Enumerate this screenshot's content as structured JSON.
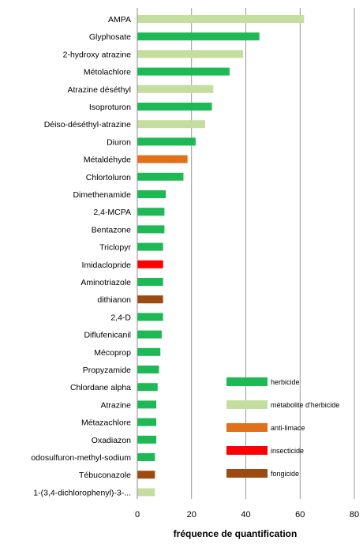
{
  "chart_data": {
    "type": "bar",
    "orientation": "horizontal",
    "title": "",
    "xlabel": "fréquence de quantification",
    "ylabel": "",
    "xlim": [
      0,
      80
    ],
    "xticks": [
      0,
      20,
      40,
      60,
      80
    ],
    "grid": "vertical",
    "legend_position": "right",
    "legend": [
      {
        "key": "herbicide",
        "label": "herbicide",
        "color": "#1db954"
      },
      {
        "key": "metabolite",
        "label": "métabolite d'herbicide",
        "color": "#c4dea0"
      },
      {
        "key": "anti-limace",
        "label": "anti-limace",
        "color": "#e2701b"
      },
      {
        "key": "insecticide",
        "label": "insecticide",
        "color": "#ff0000"
      },
      {
        "key": "fongicide",
        "label": "fongicide",
        "color": "#9c4a12"
      }
    ],
    "categories": [
      "AMPA",
      "Glyphosate",
      "2-hydroxy atrazine",
      "Métolachlore",
      "Atrazine déséthyl",
      "Isoproturon",
      "Déiso-déséthyl-atrazine",
      "Diuron",
      "Métaldéhyde",
      "Chlortoluron",
      "Dimethenamide",
      "2,4-MCPA",
      "Bentazone",
      "Triclopyr",
      "Imidaclopride",
      "Aminotriazole",
      "dithianon",
      "2,4-D",
      "Diflufenicanil",
      "Mécoprop",
      "Propyzamide",
      "Chlordane alpha",
      "Atrazine",
      "Métazachlore",
      "Oxadiazon",
      "odosulfuron-methyl-sodium",
      "Tébuconazole",
      "1-(3,4-dichlorophenyl)-3-..."
    ],
    "values": [
      61.5,
      45,
      39,
      34,
      28,
      27.5,
      25,
      21.5,
      18.5,
      17,
      10.5,
      10,
      10,
      9.5,
      9.5,
      9.5,
      9.5,
      9.5,
      9,
      8.5,
      8,
      7.5,
      7,
      7,
      7,
      6.5,
      6.5,
      6.5
    ],
    "classes": [
      "metabolite",
      "herbicide",
      "metabolite",
      "herbicide",
      "metabolite",
      "herbicide",
      "metabolite",
      "herbicide",
      "anti-limace",
      "herbicide",
      "herbicide",
      "herbicide",
      "herbicide",
      "herbicide",
      "insecticide",
      "herbicide",
      "fongicide",
      "herbicide",
      "herbicide",
      "herbicide",
      "herbicide",
      "herbicide",
      "herbicide",
      "herbicide",
      "herbicide",
      "herbicide",
      "fongicide",
      "metabolite"
    ]
  }
}
